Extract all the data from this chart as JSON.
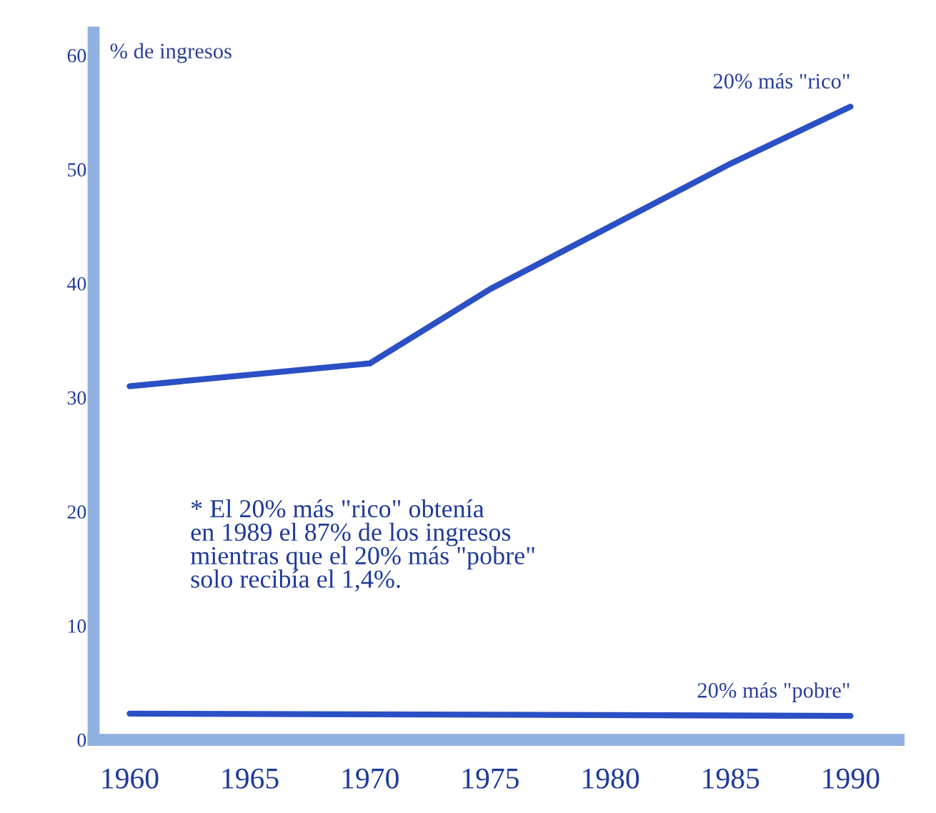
{
  "chart_data": {
    "type": "line",
    "ylabel": "% de ingresos",
    "x": [
      1960,
      1970,
      1975,
      1980,
      1985,
      1990
    ],
    "series": [
      {
        "name": "20% más \"rico\"",
        "color": "#2b4fc4",
        "values": [
          31,
          33,
          39.5,
          45,
          50.5,
          55.5
        ]
      },
      {
        "name": "20% más \"pobre\"",
        "color": "#2b4fc4",
        "x": [
          1960,
          1990
        ],
        "values": [
          2.3,
          2.1
        ]
      }
    ],
    "xlim": [
      1958.5,
      1992
    ],
    "ylim": [
      0,
      62
    ],
    "xticks": [
      1960,
      1965,
      1970,
      1975,
      1980,
      1985,
      1990
    ],
    "yticks": [
      0,
      10,
      20,
      30,
      40,
      50,
      60
    ],
    "annotations": [
      "* El 20% más \"rico\" obtenía\nen 1989 el 87% de los ingresos\nmientras que el 20% más \"pobre\"\nsolo recibía el 1,4%."
    ],
    "grid": false,
    "legend": false,
    "marker": "none",
    "line_style": "solid"
  }
}
